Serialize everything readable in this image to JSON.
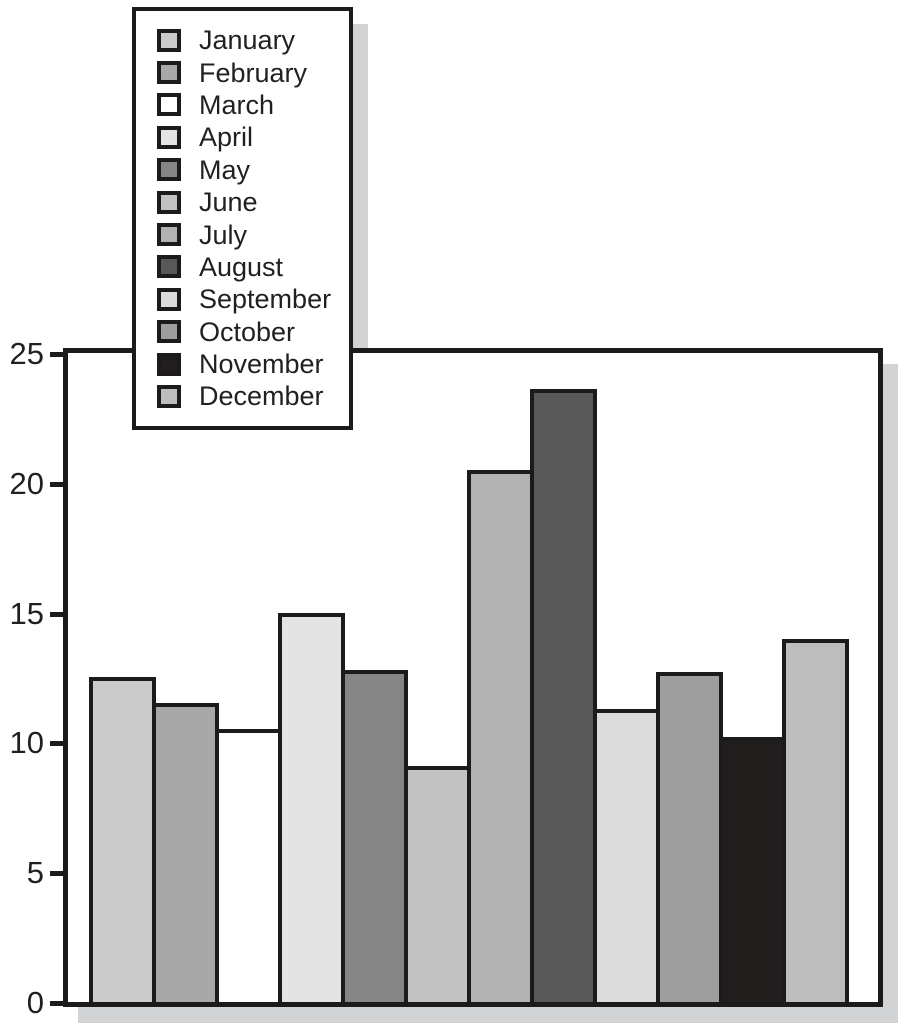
{
  "chart_data": {
    "type": "bar",
    "title": "",
    "xlabel": "",
    "ylabel": "",
    "categories": [
      "January",
      "February",
      "March",
      "April",
      "May",
      "June",
      "July",
      "August",
      "September",
      "October",
      "November",
      "December"
    ],
    "values": [
      12.5,
      11.5,
      10.5,
      15.0,
      12.8,
      9.1,
      20.5,
      23.6,
      11.3,
      12.7,
      10.2,
      14.0
    ],
    "bar_colors": [
      "#cbcbcb",
      "#a8a8a8",
      "#ffffff",
      "#e4e4e4",
      "#858585",
      "#c2c2c2",
      "#b2b2b2",
      "#585858",
      "#dcdcdc",
      "#9e9e9e",
      "#211e1e",
      "#bdbdbd"
    ],
    "ylim": [
      0,
      25
    ],
    "yticks": [
      0,
      5,
      10,
      15,
      20,
      25
    ],
    "grid": false,
    "legend_position": "top-left",
    "legend_items": [
      {
        "label": "January",
        "color": "#cbcbcb"
      },
      {
        "label": "February",
        "color": "#a8a8a8"
      },
      {
        "label": "March",
        "color": "#ffffff"
      },
      {
        "label": "April",
        "color": "#e4e4e4"
      },
      {
        "label": "May",
        "color": "#858585"
      },
      {
        "label": "June",
        "color": "#c2c2c2"
      },
      {
        "label": "July",
        "color": "#b2b2b2"
      },
      {
        "label": "August",
        "color": "#585858"
      },
      {
        "label": "September",
        "color": "#dcdcdc"
      },
      {
        "label": "October",
        "color": "#9e9e9e"
      },
      {
        "label": "November",
        "color": "#211e1e"
      },
      {
        "label": "December",
        "color": "#bdbdbd"
      }
    ]
  },
  "colors": {
    "outline": "#1c1a1a",
    "text": "#231f20",
    "shadow": "#d2d3d4",
    "background": "#ffffff"
  }
}
